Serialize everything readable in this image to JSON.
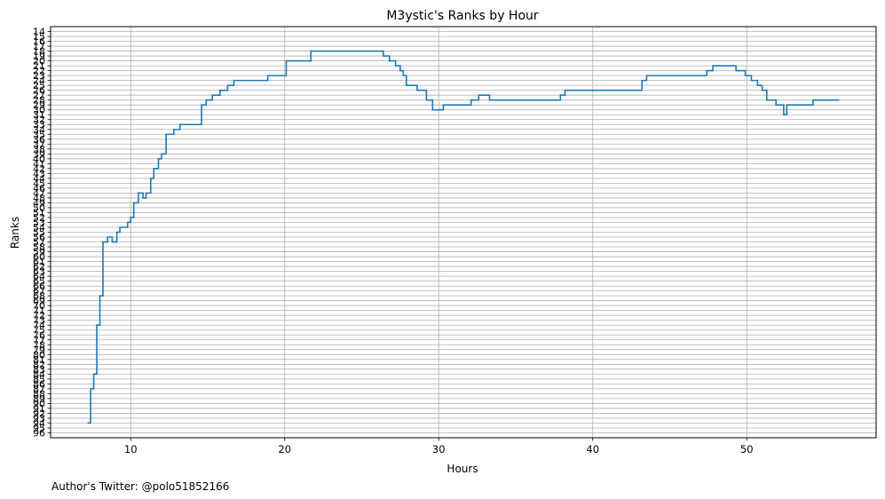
{
  "chart_data": {
    "type": "line",
    "step": true,
    "title": "M3ystic's Ranks by Hour",
    "xlabel": "Hours",
    "ylabel": "Ranks",
    "xlim": [
      4.8,
      58.4
    ],
    "ylim": [
      97,
      13
    ],
    "y_inverted": true,
    "xticks": [
      10,
      20,
      30,
      40,
      50
    ],
    "yticks": [
      14,
      15,
      16,
      17,
      18,
      19,
      20,
      21,
      22,
      23,
      24,
      25,
      26,
      27,
      28,
      29,
      30,
      31,
      32,
      33,
      34,
      35,
      36,
      37,
      38,
      39,
      40,
      41,
      42,
      43,
      44,
      45,
      46,
      47,
      48,
      49,
      50,
      51,
      52,
      53,
      54,
      55,
      56,
      57,
      58,
      59,
      60,
      61,
      62,
      63,
      64,
      65,
      66,
      67,
      68,
      69,
      70,
      71,
      72,
      73,
      74,
      75,
      76,
      77,
      78,
      79,
      80,
      81,
      82,
      83,
      84,
      85,
      86,
      87,
      88,
      89,
      90,
      91,
      92,
      93,
      94,
      95,
      96
    ],
    "grid": true,
    "color": "#1f77b4",
    "series": [
      {
        "x": [
          7.2,
          7.4,
          7.6,
          7.8,
          8.0,
          8.2,
          8.5,
          8.8,
          9.1,
          9.3,
          9.8,
          10.0,
          10.2,
          10.5,
          10.8,
          11.0,
          11.3,
          11.5,
          11.8,
          12.0,
          12.3,
          12.8,
          13.2,
          14.6,
          14.9,
          15.3,
          15.8,
          16.3,
          16.7,
          18.9,
          20.1,
          21.7,
          26.4,
          26.8,
          27.2,
          27.5,
          27.7,
          27.9,
          28.6,
          29.2,
          29.6,
          30.3,
          32.1,
          32.6,
          33.3,
          37.9,
          38.2,
          43.2,
          43.5,
          47.4,
          47.8,
          49.3,
          49.9,
          50.3,
          50.7,
          51.0,
          51.3,
          51.9,
          52.4,
          52.6,
          54.3,
          56.0
        ],
        "y": [
          94,
          87,
          84,
          74,
          68,
          57,
          56,
          57,
          55,
          54,
          53,
          52,
          49,
          47,
          48,
          47,
          44,
          42,
          40,
          39,
          35,
          34,
          33,
          29,
          28,
          27,
          26,
          25,
          24,
          23,
          20,
          18,
          19,
          20,
          21,
          22,
          23,
          25,
          26,
          28,
          30,
          29,
          28,
          27,
          28,
          27,
          26,
          24,
          23,
          22,
          21,
          22,
          23,
          24,
          25,
          26,
          28,
          29,
          31,
          29,
          28,
          28
        ]
      }
    ]
  },
  "footer": {
    "author_text": "Author's Twitter: @polo51852166"
  }
}
